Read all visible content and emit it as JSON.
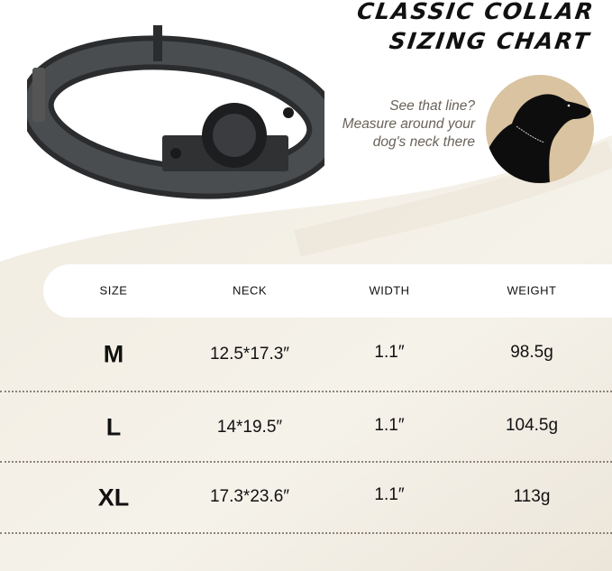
{
  "title": {
    "line1": "CLASSIC COLLAR",
    "line2": "SIZING CHART"
  },
  "tip": {
    "line1": "See that line?",
    "line2": "Measure around your",
    "line3": "dog's neck there"
  },
  "colors": {
    "accent_circle": "#d9c3a0",
    "background_beige": "#f2eee4",
    "text": "#111111"
  },
  "images": {
    "product": "black-dog-collar-with-airtag-holder",
    "illustration": "dog-silhouette-neck-line"
  },
  "table": {
    "headers": [
      "SIZE",
      "NECK",
      "WIDTH",
      "WEIGHT"
    ],
    "rows": [
      {
        "size": "M",
        "neck": "12.5*17.3″",
        "width": "1.1″",
        "weight": "98.5g"
      },
      {
        "size": "L",
        "neck": "14*19.5″",
        "width": "1.1″",
        "weight": "104.5g"
      },
      {
        "size": "XL",
        "neck": "17.3*23.6″",
        "width": "1.1″",
        "weight": "113g"
      }
    ]
  }
}
